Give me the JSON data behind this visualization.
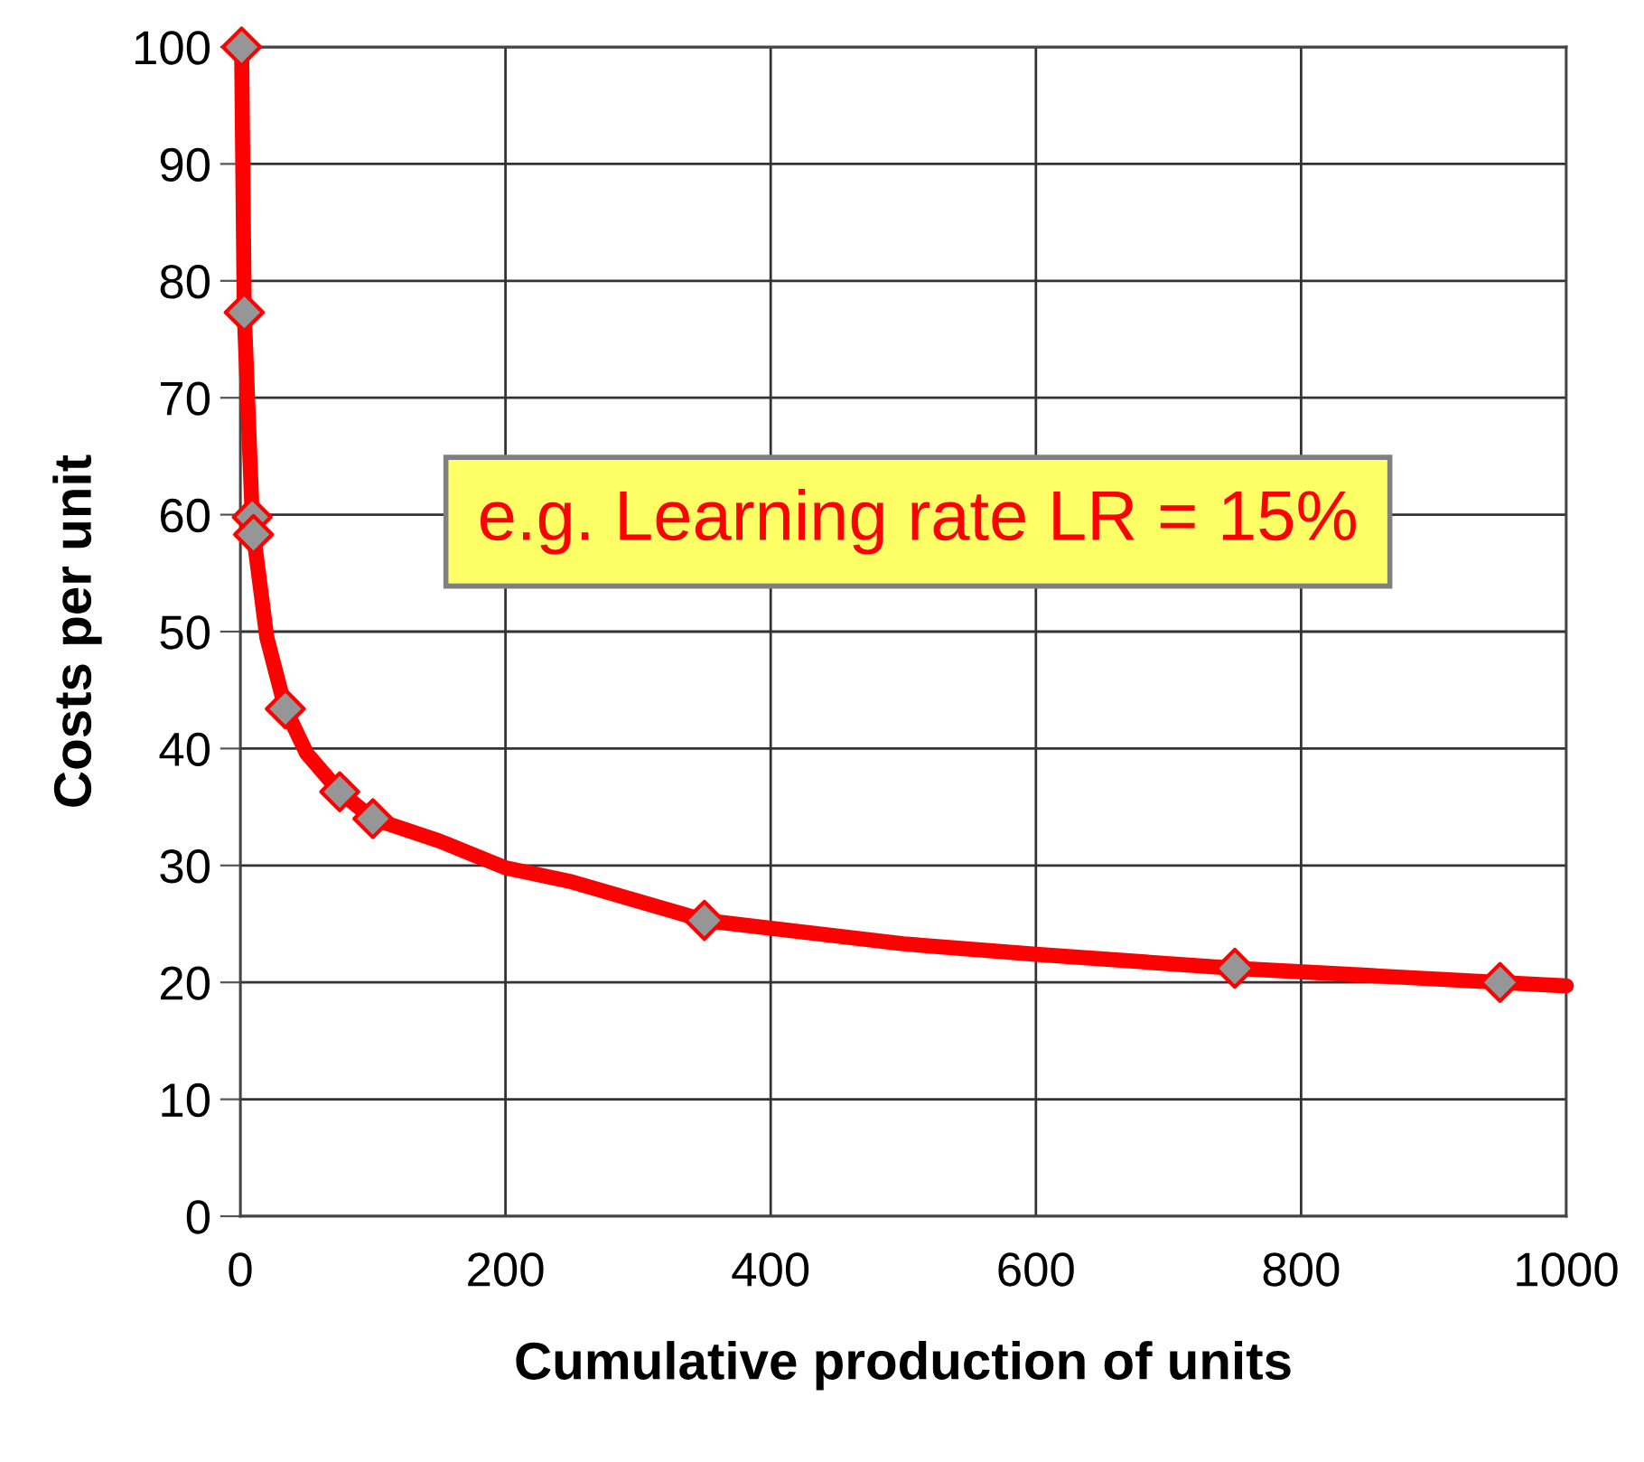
{
  "chart_data": {
    "type": "line",
    "xlabel": "Cumulative production of units",
    "ylabel": "Costs per unit",
    "annotations": [
      "e.g. Learning rate LR = 15%"
    ],
    "series": [
      {
        "color": "#ff0000",
        "marker": "none",
        "x": [
          1,
          3,
          9,
          10,
          20,
          34,
          50,
          75,
          100,
          150,
          200,
          250,
          350,
          500,
          600,
          750,
          850,
          950,
          1000
        ],
        "values": [
          100,
          77.3,
          59.8,
          58.3,
          49.5,
          43.4,
          39.6,
          36.3,
          34.0,
          32.1,
          29.8,
          28.6,
          25.3,
          23.3,
          22.4,
          21.2,
          20.6,
          20.0,
          19.7
        ]
      },
      {
        "type": "scatter",
        "color": "#969696",
        "marker": "diamond",
        "x": [
          1,
          3,
          9,
          10,
          34,
          75,
          100,
          350,
          750,
          950
        ],
        "values": [
          100,
          77.3,
          59.8,
          58.3,
          43.4,
          36.3,
          34.0,
          25.3,
          21.2,
          20.0
        ]
      }
    ],
    "xlim": [
      0,
      1000
    ],
    "xticks": [
      0,
      200,
      400,
      600,
      800,
      1000
    ],
    "ylim": [
      0,
      100
    ],
    "yticks": [
      0,
      10,
      20,
      30,
      40,
      50,
      60,
      70,
      80,
      90,
      100
    ],
    "grid": true
  }
}
